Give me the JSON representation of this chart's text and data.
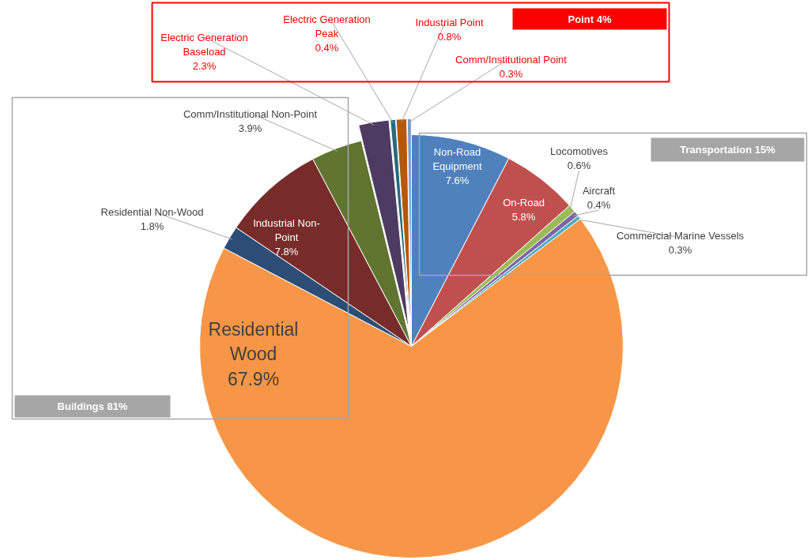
{
  "chart_data": {
    "type": "pie",
    "categories": [
      "Non-Road Equipment",
      "On-Road",
      "Locomotives",
      "Aircraft",
      "Commercial Marine Vessels",
      "Residential Wood",
      "Residential Non-Wood",
      "Industrial Non-Point",
      "Comm/Institutional Non-Point",
      "Electric Generation Baseload",
      "Electric Generation Peak",
      "Industrial Point",
      "Comm/Institutional Point"
    ],
    "values": [
      7.6,
      5.8,
      0.6,
      0.4,
      0.3,
      67.9,
      1.8,
      7.8,
      3.9,
      2.3,
      0.4,
      0.8,
      0.3
    ],
    "value_labels": [
      "7.6%",
      "5.8%",
      "0.6%",
      "0.4%",
      "0.3%",
      "67.9%",
      "1.8%",
      "7.8%",
      "3.9%",
      "2.3%",
      "0.4%",
      "0.8%",
      "0.3%"
    ],
    "colors": [
      "#4f81bd",
      "#c0504d",
      "#9bbb59",
      "#8064a2",
      "#4bacc6",
      "#f79646",
      "#2c4d75",
      "#772c2a",
      "#5f7530",
      "#4d3b62",
      "#276a7c",
      "#b65708",
      "#729aca"
    ],
    "annotations": [
      "Point 4%",
      "Transportation 15%",
      "Buildings 81%"
    ]
  }
}
